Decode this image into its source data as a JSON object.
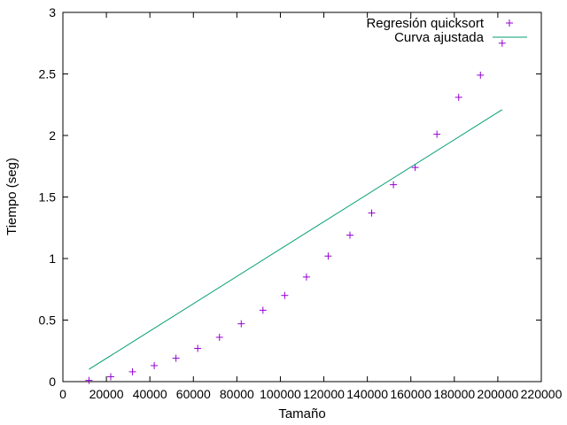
{
  "chart_data": {
    "type": "scatter",
    "title": "",
    "xlabel": "Tamaño",
    "ylabel": "Tiempo (seg)",
    "xlim": [
      0,
      220000
    ],
    "ylim": [
      0,
      3
    ],
    "x_ticks": [
      0,
      20000,
      40000,
      60000,
      80000,
      100000,
      120000,
      140000,
      160000,
      180000,
      200000,
      220000
    ],
    "y_ticks": [
      0,
      0.5,
      1,
      1.5,
      2,
      2.5,
      3
    ],
    "x_tick_labels": [
      "0",
      "20000",
      "40000",
      "60000",
      "80000",
      "100000",
      "120000",
      "140000",
      "160000",
      "180000",
      "200000",
      "220000"
    ],
    "y_tick_labels": [
      "0",
      "0.5",
      "1",
      "1.5",
      "2",
      "2.5",
      "3"
    ],
    "grid": false,
    "legend_position": "top-right",
    "series": [
      {
        "name": "Regresión quicksort",
        "kind": "points",
        "marker": "plus",
        "color": "#9400d3",
        "x": [
          12000,
          22000,
          32000,
          42000,
          52000,
          62000,
          72000,
          82000,
          92000,
          102000,
          112000,
          122000,
          132000,
          142000,
          152000,
          162000,
          172000,
          182000,
          192000,
          202000
        ],
        "y": [
          0.01,
          0.04,
          0.08,
          0.13,
          0.19,
          0.27,
          0.36,
          0.47,
          0.58,
          0.7,
          0.85,
          1.02,
          1.19,
          1.37,
          1.6,
          1.74,
          2.01,
          2.31,
          2.49,
          2.75
        ]
      },
      {
        "name": "Curva ajustada",
        "kind": "line",
        "color": "#009e73",
        "x": [
          12000,
          202000
        ],
        "y": [
          0.1,
          2.21
        ]
      }
    ]
  }
}
